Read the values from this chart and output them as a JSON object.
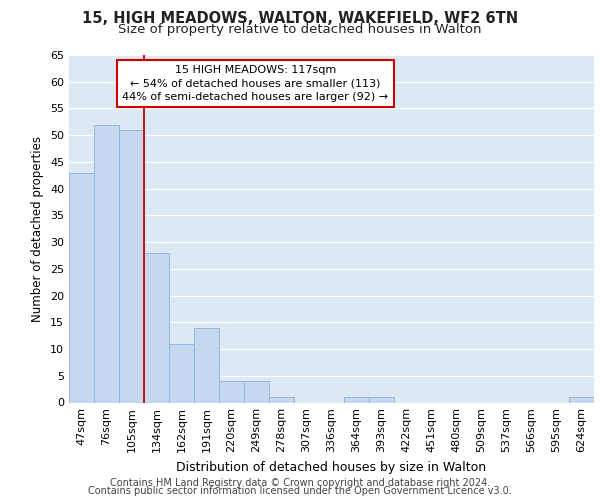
{
  "title1": "15, HIGH MEADOWS, WALTON, WAKEFIELD, WF2 6TN",
  "title2": "Size of property relative to detached houses in Walton",
  "xlabel": "Distribution of detached houses by size in Walton",
  "ylabel": "Number of detached properties",
  "categories": [
    "47sqm",
    "76sqm",
    "105sqm",
    "134sqm",
    "162sqm",
    "191sqm",
    "220sqm",
    "249sqm",
    "278sqm",
    "307sqm",
    "336sqm",
    "364sqm",
    "393sqm",
    "422sqm",
    "451sqm",
    "480sqm",
    "509sqm",
    "537sqm",
    "566sqm",
    "595sqm",
    "624sqm"
  ],
  "values": [
    43,
    52,
    51,
    28,
    11,
    14,
    4,
    4,
    1,
    0,
    0,
    1,
    1,
    0,
    0,
    0,
    0,
    0,
    0,
    0,
    1
  ],
  "bar_color": "#c5d8f0",
  "bar_edge_color": "#8ab4d8",
  "background_color": "#dde8f5",
  "red_line_x": 2.5,
  "annotation_text": "15 HIGH MEADOWS: 117sqm\n← 54% of detached houses are smaller (113)\n44% of semi-detached houses are larger (92) →",
  "annotation_box_color": "#ffffff",
  "annotation_box_edge": "#cc0000",
  "footer_line1": "Contains HM Land Registry data © Crown copyright and database right 2024.",
  "footer_line2": "Contains public sector information licensed under the Open Government Licence v3.0.",
  "ylim": [
    0,
    65
  ],
  "yticks": [
    0,
    5,
    10,
    15,
    20,
    25,
    30,
    35,
    40,
    45,
    50,
    55,
    60,
    65
  ],
  "title_fontsize": 10.5,
  "subtitle_fontsize": 9.5,
  "tick_fontsize": 8,
  "ylabel_fontsize": 8.5,
  "xlabel_fontsize": 9,
  "footer_fontsize": 7
}
